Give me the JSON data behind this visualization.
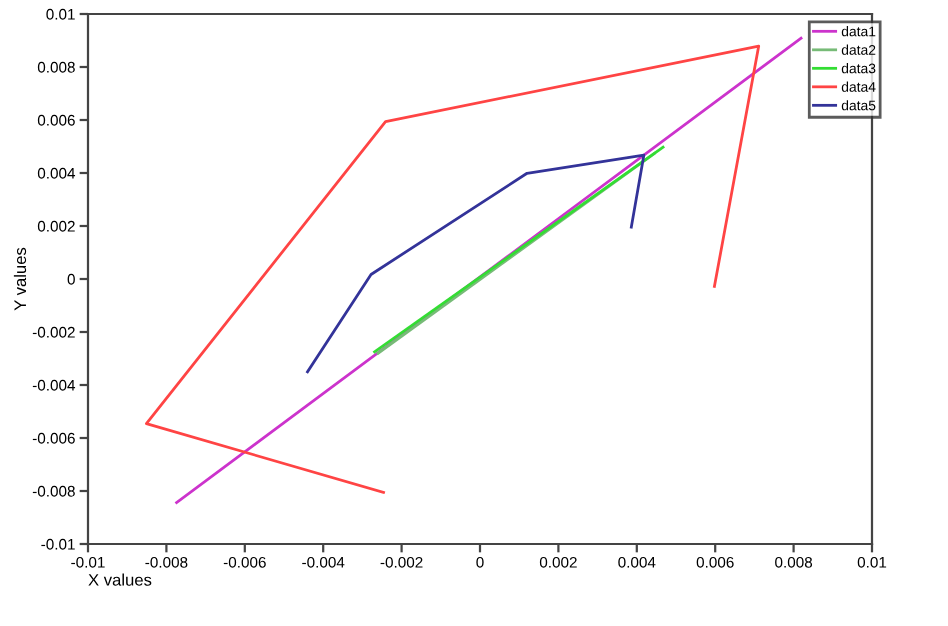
{
  "chart_data": {
    "type": "line",
    "xlabel": "X values",
    "ylabel": "Y values",
    "xlim": [
      -0.01,
      0.01
    ],
    "ylim": [
      -0.01,
      0.01
    ],
    "xticks": [
      -0.01,
      -0.008,
      -0.006,
      -0.004,
      -0.002,
      0,
      0.002,
      0.004,
      0.006,
      0.008,
      0.01
    ],
    "yticks": [
      -0.01,
      -0.008,
      -0.006,
      -0.004,
      -0.002,
      0,
      0.002,
      0.004,
      0.006,
      0.008,
      0.01
    ],
    "grid": false,
    "legend": "top right",
    "marker": "none",
    "line_style": "solid",
    "series": [
      {
        "name": "data1",
        "color": "#cc33cc",
        "x": [
          -0.00774,
          0.00819
        ],
        "values": [
          -0.00844,
          0.00909
        ]
      },
      {
        "name": "data2",
        "color": "#77bb77",
        "x": [
          -0.0026,
          0.00445
        ],
        "values": [
          -0.0028,
          0.00474
        ]
      },
      {
        "name": "data3",
        "color": "#33dd33",
        "x": [
          -0.00269,
          0.00467
        ],
        "values": [
          -0.00275,
          0.00497
        ]
      },
      {
        "name": "data4",
        "color": "#ff4444",
        "x": [
          -0.00246,
          -0.00851,
          -0.00241,
          0.00711,
          0.00598
        ],
        "values": [
          -0.00805,
          -0.00546,
          0.00594,
          0.00879,
          -0.00028
        ]
      },
      {
        "name": "data5",
        "color": "#333399",
        "x": [
          -0.0044,
          -0.00278,
          0.0012,
          0.00418,
          0.00386
        ],
        "values": [
          -0.0035,
          0.00017,
          0.00399,
          0.00467,
          0.00196
        ]
      }
    ]
  }
}
